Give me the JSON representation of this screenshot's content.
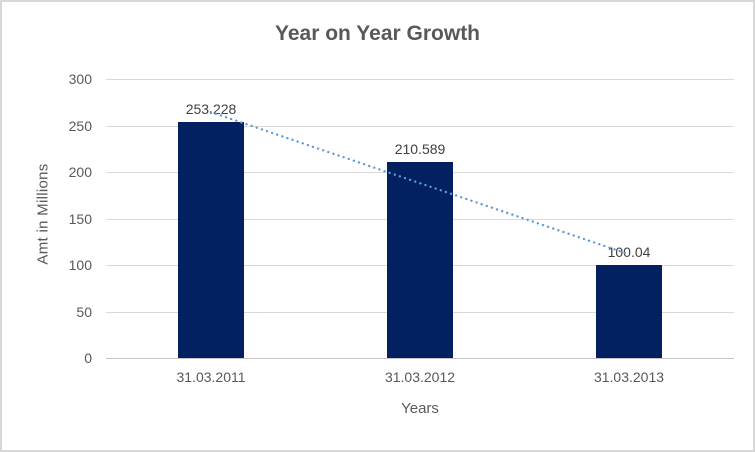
{
  "chart_data": {
    "type": "bar",
    "title": "Year on Year Growth",
    "categories": [
      "31.03.2011",
      "31.03.2012",
      "31.03.2013"
    ],
    "values": [
      253.228,
      210.589,
      100.04
    ],
    "data_labels": [
      "253.228",
      "210.589",
      "100.04"
    ],
    "xlabel": "Years",
    "ylabel": "Amt in Millions",
    "ylim": [
      0,
      300
    ],
    "yticks": [
      0,
      50,
      100,
      150,
      200,
      250,
      300
    ],
    "grid": true,
    "legend": false,
    "trendline": {
      "type": "linear",
      "style": "dotted",
      "start_value": 264.5,
      "end_value": 111.4
    },
    "colors": {
      "bar": "#032160",
      "trendline": "#5b9bd5",
      "gridline": "#d9d9d9",
      "axis_line": "#c6c6c6",
      "title_text": "#595959",
      "axis_text": "#595959",
      "data_label_text": "#404040",
      "border": "#d8d8d8",
      "background": "#ffffff"
    }
  }
}
